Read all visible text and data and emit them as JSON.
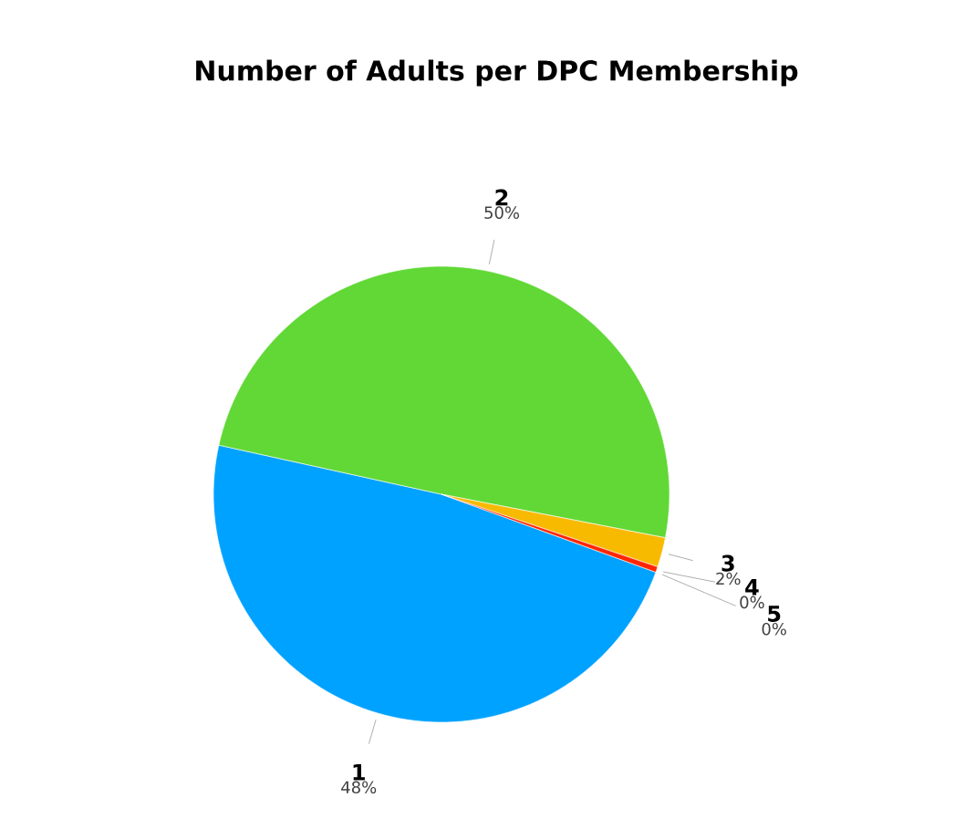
{
  "chart_data": {
    "type": "pie",
    "title": "Number of Adults per DPC Membership",
    "categories": [
      "1",
      "2",
      "3",
      "4",
      "5"
    ],
    "values": [
      47.9,
      49.6,
      2.1,
      0.4,
      0.0
    ],
    "value_labels": [
      "48%",
      "50%",
      "2%",
      "0%",
      "0%"
    ],
    "colors": [
      "#00a2ff",
      "#61d836",
      "#f8ba00",
      "#ff2600",
      "#c000c0"
    ]
  }
}
